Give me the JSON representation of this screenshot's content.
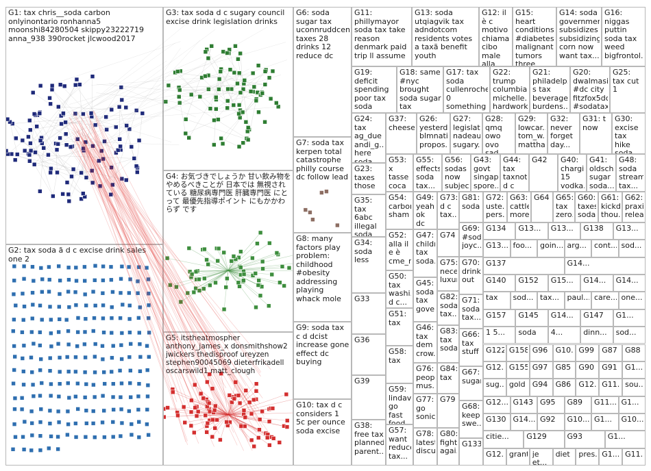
{
  "groups": [
    {
      "id": "G1",
      "label": "G1: tax chris__soda carbon onlyinontario ronhanna5 moonshi84280504 skippy23222719 anna_938 390rocket jlcwood2017",
      "color": "#1f2a7a",
      "nodes": 120
    },
    {
      "id": "G2",
      "label": "G2: tax soda ã d c excise drink sales one 2",
      "color": "#2f6fb0",
      "nodes": 230
    },
    {
      "id": "G3",
      "label": "G3: tax soda d c sugary council excise drink legislation drinks",
      "color": "#2e7d32",
      "nodes": 90
    },
    {
      "id": "G4",
      "label": "G4: お気づきでしょうか 甘い飲み物をやめるべきことが 日本では 無視されている 糖尿病専門医 肝臓専門医 にとって 最優先指導ポイント にもかかわらず です",
      "color": "#3e8e3e",
      "nodes": 70
    },
    {
      "id": "G5",
      "label": "G5: itstheatmospher anthony_james_x donsmithshow2 jwickers thedisproof ureyzen stephen90045069 dieterfrikadell oscarswild1 matt_clough",
      "color": "#d32f2f",
      "nodes": 90
    },
    {
      "id": "G6",
      "label": "G6: soda sugar tax uconnruddcent... taxes 28 drinks 12 reduce dc",
      "color": "#1f2a7a",
      "nodes": 6
    },
    {
      "id": "G7",
      "label": "G7: soda tax kerpen total catastrophe philly course dc follow lead",
      "color": "#8d6e63",
      "nodes": 6
    },
    {
      "id": "G8",
      "label": "G8: many factors play problem: childhood #obesity addressing playing whack mole",
      "color": "#546e7a",
      "nodes": 4
    },
    {
      "id": "G9",
      "label": "G9: soda tax c d dcist increase gone effect dc buying",
      "color": "#455a64",
      "nodes": 4
    },
    {
      "id": "G10",
      "label": "G10: tax d c considers 1 5c per ounce soda excise",
      "color": "#455a64",
      "nodes": 4
    },
    {
      "id": "G11",
      "label": "G11: phillymayor soda tax take reason denmark paid trip ll assume",
      "color": "#1f2a7a",
      "nodes": 3
    },
    {
      "id": "G12",
      "label": "G12: il è c motivo chiama cibo male alla",
      "color": "#1f2a7a",
      "nodes": 3
    },
    {
      "id": "G13",
      "label": "G13: soda utqiagvik tax adndotcom residents votes a taxã benefit youth",
      "color": "#1f2a7a",
      "nodes": 3
    },
    {
      "id": "G14",
      "label": "G14: soda government subsidizes subsidizing corn now want tax...",
      "color": "#1f2a7a",
      "nodes": 3
    },
    {
      "id": "G15",
      "label": "G15: heart conditions #diabetes malignant tumors three main...",
      "color": "#1f2a7a",
      "nodes": 3
    },
    {
      "id": "G16",
      "label": "G16: niggas puttin soda tax weed bigfrontol...",
      "color": "#1f2a7a",
      "nodes": 3
    },
    {
      "id": "G17",
      "label": "G17: tax soda cullenroche 0 something t food...",
      "color": "#1f2a7a",
      "nodes": 3
    },
    {
      "id": "G18",
      "label": "G18: same #nyc brought soda sugar tax nanny...",
      "color": "#1f2a7a",
      "nodes": 3
    },
    {
      "id": "G19",
      "label": "G19: deficit spending poor tax soda",
      "color": "#1f2a7a",
      "nodes": 3
    },
    {
      "id": "G20",
      "label": "G20: dwalmasi #dc city fitzfox5dc #sodatax...",
      "color": "#1f2a7a",
      "nodes": 3
    },
    {
      "id": "G21",
      "label": "G21: philadelp... s tax beverage burdens...",
      "color": "#1f2a7a",
      "nodes": 3
    },
    {
      "id": "G22",
      "label": "G22: trump columbia... michelle... hardworki...",
      "color": "#1f2a7a",
      "nodes": 3
    },
    {
      "id": "G23",
      "label": "G23: taxes those",
      "color": "#1f2a7a",
      "nodes": 3
    },
    {
      "id": "G24",
      "label": "G24: tax ag_due andi_g... here soda",
      "color": "#1f2a7a",
      "nodes": 3
    },
    {
      "id": "G25",
      "label": "G25: tax cut 1",
      "color": "#1f2a7a",
      "nodes": 3
    },
    {
      "id": "G26",
      "label": "G26: yesterd... blmnati... propos...",
      "color": "#1f2a7a",
      "nodes": 3
    },
    {
      "id": "G27",
      "label": "G27: legislati... nadeau sugary...",
      "color": "#1f2a7a",
      "nodes": 3
    },
    {
      "id": "G28",
      "label": "G28: qmq owo ovo sad happy...",
      "color": "#1f2a7a",
      "nodes": 3
    },
    {
      "id": "G29",
      "label": "G29: lowcar... tom_w... mattha...",
      "color": "#1f2a7a",
      "nodes": 3
    },
    {
      "id": "G30",
      "label": "G30: excise tax hike soda",
      "color": "#1f2a7a",
      "nodes": 3
    },
    {
      "id": "G31",
      "label": "G31: t now",
      "color": "#1f2a7a",
      "nodes": 3
    },
    {
      "id": "G32",
      "label": "G32: never forget day...",
      "color": "#1f2a7a",
      "nodes": 3
    },
    {
      "id": "G33",
      "label": "G33",
      "color": "#1f2a7a",
      "nodes": 3
    },
    {
      "id": "G34",
      "label": "G34: soda less",
      "color": "#1f2a7a",
      "nodes": 3
    },
    {
      "id": "G35",
      "label": "G35: tax 6abc illegal soda",
      "color": "#1f2a7a",
      "nodes": 3
    },
    {
      "id": "G36",
      "label": "G36",
      "color": "#1f2a7a",
      "nodes": 3
    },
    {
      "id": "G37",
      "label": "G37: cheese",
      "color": "#1f2a7a",
      "nodes": 3
    },
    {
      "id": "G38",
      "label": "G38: free tax planned parent...",
      "color": "#1f2a7a",
      "nodes": 3
    },
    {
      "id": "G39",
      "label": "G39",
      "color": "#1f2a7a",
      "nodes": 3
    },
    {
      "id": "G40",
      "label": "G40: chargi... 15 vodka...",
      "color": "#1f2a7a",
      "nodes": 3
    },
    {
      "id": "G41",
      "label": "G41: oldsch... sugar soda...",
      "color": "#1f2a7a",
      "nodes": 3
    },
    {
      "id": "G42",
      "label": "G42",
      "color": "#1f2a7a",
      "nodes": 3
    },
    {
      "id": "G43",
      "label": "G43: govt singap... spore...",
      "color": "#1f2a7a",
      "nodes": 3
    },
    {
      "id": "G44",
      "label": "G44: tax taxnot... d c bill...",
      "color": "#1f2a7a",
      "nodes": 3
    },
    {
      "id": "G45",
      "label": "G45: soda tax gove...",
      "color": "#1f2a7a",
      "nodes": 3
    },
    {
      "id": "G46",
      "label": "G46: tax dem crow...",
      "color": "#1f2a7a",
      "nodes": 3
    },
    {
      "id": "G47",
      "label": "G47: childr... tax soda...",
      "color": "#1f2a7a",
      "nodes": 3
    },
    {
      "id": "G48",
      "label": "G48: soda stream tax...",
      "color": "#1f2a7a",
      "nodes": 3
    },
    {
      "id": "G49",
      "label": "G49: yeah ok dc place...",
      "color": "#1f2a7a",
      "nodes": 3
    },
    {
      "id": "G50",
      "label": "G50: tax washi... d c...",
      "color": "#1f2a7a",
      "nodes": 3
    },
    {
      "id": "G51",
      "label": "G51: tax",
      "color": "#1f2a7a",
      "nodes": 3
    },
    {
      "id": "G52",
      "label": "G52: alla il e è cme_r...",
      "color": "#1f2a7a",
      "nodes": 3
    },
    {
      "id": "G53",
      "label": "G53: x tasse coca cola...",
      "color": "#1f2a7a",
      "nodes": 3
    },
    {
      "id": "G54",
      "label": "G54: carbon sham",
      "color": "#1f2a7a",
      "nodes": 3
    },
    {
      "id": "G55",
      "label": "G55: effects soda tax...",
      "color": "#1f2a7a",
      "nodes": 3
    },
    {
      "id": "G56",
      "label": "G56: sodas now subjec...",
      "color": "#1f2a7a",
      "nodes": 3
    },
    {
      "id": "G57",
      "label": "G57: want reduce tax...",
      "color": "#1f2a7a",
      "nodes": 3
    },
    {
      "id": "G58",
      "label": "G58: tax",
      "color": "#1f2a7a",
      "nodes": 3
    },
    {
      "id": "G59",
      "label": "G59: lindavi... go fast food...",
      "color": "#1f2a7a",
      "nodes": 3
    },
    {
      "id": "G60",
      "label": "G60: taxes soda...",
      "color": "#1f2a7a",
      "nodes": 3
    },
    {
      "id": "G61",
      "label": "G61: kickd... thou...",
      "color": "#1f2a7a",
      "nodes": 3
    },
    {
      "id": "G62",
      "label": "G62: praxi... relea...",
      "color": "#1f2a7a",
      "nodes": 3
    },
    {
      "id": "G63",
      "label": "G63: cattle more...",
      "color": "#1f2a7a",
      "nodes": 3
    },
    {
      "id": "G64",
      "label": "G64",
      "color": "#1f2a7a",
      "nodes": 3
    },
    {
      "id": "G65",
      "label": "G65: tax zero...",
      "color": "#1f2a7a",
      "nodes": 3
    },
    {
      "id": "G66",
      "label": "G66: tax stuff",
      "color": "#1f2a7a",
      "nodes": 3
    },
    {
      "id": "G67",
      "label": "G67: sugar",
      "color": "#1f2a7a",
      "nodes": 3
    },
    {
      "id": "G68",
      "label": "G68: keep swe...",
      "color": "#1f2a7a",
      "nodes": 3
    },
    {
      "id": "G69",
      "label": "G69: #soda joyc...",
      "color": "#1f2a7a",
      "nodes": 3
    },
    {
      "id": "G70",
      "label": "G70: drink out",
      "color": "#1f2a7a",
      "nodes": 3
    },
    {
      "id": "G71",
      "label": "G71: soda tax...",
      "color": "#1f2a7a",
      "nodes": 3
    },
    {
      "id": "G72",
      "label": "G72: uste... pers...",
      "color": "#1f2a7a",
      "nodes": 3
    },
    {
      "id": "G73",
      "label": "G73: d c tax...",
      "color": "#1f2a7a",
      "nodes": 3
    },
    {
      "id": "G74",
      "label": "G74",
      "color": "#1f2a7a",
      "nodes": 3
    },
    {
      "id": "G75",
      "label": "G75: nece... luxur...",
      "color": "#1f2a7a",
      "nodes": 3
    },
    {
      "id": "G76",
      "label": "G76: peop... mus...",
      "color": "#1f2a7a",
      "nodes": 3
    },
    {
      "id": "G77",
      "label": "G77: go sonic",
      "color": "#1f2a7a",
      "nodes": 3
    },
    {
      "id": "G78",
      "label": "G78: latest discu...",
      "color": "#1f2a7a",
      "nodes": 3
    },
    {
      "id": "G79",
      "label": "G79",
      "color": "#1f2a7a",
      "nodes": 3
    },
    {
      "id": "G80",
      "label": "G80: fighti... agai...",
      "color": "#1f2a7a",
      "nodes": 3
    },
    {
      "id": "G81",
      "label": "G81: soda",
      "color": "#1f2a7a",
      "nodes": 3
    },
    {
      "id": "G82",
      "label": "G82: soda tax...",
      "color": "#1f2a7a",
      "nodes": 3
    },
    {
      "id": "G83",
      "label": "G83: tax soda...",
      "color": "#1f2a7a",
      "nodes": 3
    },
    {
      "id": "G84",
      "label": "G84: tax",
      "color": "#1f2a7a",
      "nodes": 3
    },
    {
      "id": "G85",
      "label": "G85: tax",
      "color": "#1f2a7a",
      "nodes": 3
    },
    {
      "id": "G86",
      "label": "G86: wor...",
      "color": "#1f2a7a",
      "nodes": 3
    },
    {
      "id": "G87",
      "label": "G87: soda",
      "color": "#1f2a7a",
      "nodes": 3
    },
    {
      "id": "G88",
      "label": "G88: wait...",
      "color": "#1f2a7a",
      "nodes": 3
    },
    {
      "id": "G89",
      "label": "G89: u 4...",
      "color": "#1f2a7a",
      "nodes": 3
    },
    {
      "id": "G90",
      "label": "G90",
      "color": "#1f2a7a",
      "nodes": 3
    },
    {
      "id": "G91",
      "label": "G91: 9 1...",
      "color": "#1f2a7a",
      "nodes": 3
    },
    {
      "id": "G92",
      "label": "G92: dc",
      "color": "#1f2a7a",
      "nodes": 3
    },
    {
      "id": "G93",
      "label": "G93",
      "color": "#1f2a7a",
      "nodes": 3
    },
    {
      "id": "G94",
      "label": "G94",
      "color": "#1f2a7a",
      "nodes": 3
    },
    {
      "id": "G95",
      "label": "G95: d c...",
      "color": "#1f2a7a",
      "nodes": 3
    },
    {
      "id": "G96",
      "label": "G96: tell...",
      "color": "#1f2a7a",
      "nodes": 3
    },
    {
      "id": "G97",
      "label": "G97: tax...",
      "color": "#1f2a7a",
      "nodes": 3
    },
    {
      "id": "G98",
      "label": "G98: s 95",
      "color": "#1f2a7a",
      "nodes": 3
    },
    {
      "id": "G99",
      "label": "G99: sug...",
      "color": "#1f2a7a",
      "nodes": 3
    },
    {
      "id": "G100",
      "label": "G10...",
      "color": "#1f2a7a",
      "nodes": 3
    },
    {
      "id": "G108",
      "label": "G108: vodka",
      "color": "#1f2a7a",
      "nodes": 3
    },
    {
      "id": "G109",
      "label": "G109: jobs...",
      "color": "#1f2a7a",
      "nodes": 3
    },
    {
      "id": "G110",
      "label": "G110: #soda...",
      "color": "#1f2a7a",
      "nodes": 3
    }
  ],
  "small_cells": [
    [
      "G134",
      "G13...",
      "G13...",
      "G138",
      "G13..."
    ],
    [
      "G13...",
      "foo...",
      "goin...",
      "arg...",
      "cont...",
      "sod..."
    ],
    [
      "G137",
      "G14..."
    ],
    [
      "G140",
      "G152",
      "G15...",
      "G14...",
      "G14..."
    ],
    [
      "tax",
      "sod...",
      "tax...",
      "paul...",
      "care...",
      "one..."
    ],
    [
      "G157",
      "G145",
      "G14...",
      "G147",
      "G1..."
    ],
    [
      "1 5...",
      "soda",
      "4...",
      "dinn...",
      "sod..."
    ],
    [
      "G122",
      "G158",
      "G96",
      "G10...",
      "G99",
      "G87",
      "G88"
    ],
    [
      "G12...",
      "G155",
      "G97",
      "G85",
      "G90",
      "G91",
      "G1..."
    ],
    [
      "sug...",
      "gold",
      "G94",
      "G86",
      "G12...",
      "G11...",
      "sou..."
    ],
    [
      "G12...",
      "G143",
      "G95",
      "G89",
      "G11...",
      "G1..."
    ],
    [
      "G130",
      "G14...",
      "G92",
      "G10...",
      "G1...",
      "G10..."
    ],
    [
      "citie...",
      "G129",
      "G93",
      "G1..."
    ],
    [
      "G12...",
      "grant",
      "je et...",
      "diet",
      "pres...",
      "G1...",
      "G11..."
    ]
  ],
  "link_color": "#e53935"
}
